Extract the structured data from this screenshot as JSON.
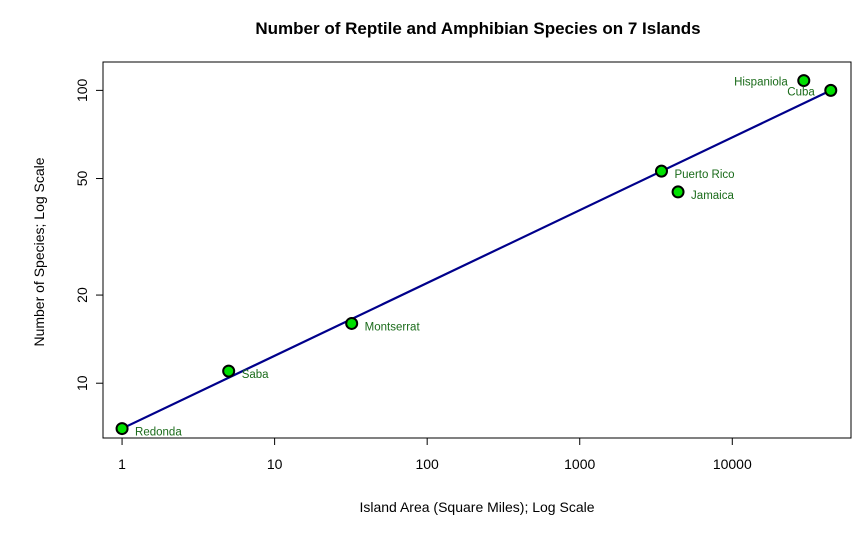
{
  "chart_data": {
    "type": "scatter",
    "title": "Number of Reptile and Amphibian Species on 7 Islands",
    "xlabel": "Island Area (Square Miles); Log Scale",
    "ylabel": "Number of Species; Log Scale",
    "x_scale": "log",
    "y_scale": "log",
    "xlim": [
      0.75,
      60000
    ],
    "ylim": [
      6.5,
      125
    ],
    "x_ticks": [
      1,
      10,
      100,
      1000,
      10000
    ],
    "x_tick_labels": [
      "1",
      "10",
      "100",
      "1000",
      "10000"
    ],
    "y_ticks": [
      10,
      20,
      50,
      100
    ],
    "y_tick_labels": [
      "10",
      "20",
      "50",
      "100"
    ],
    "grid": false,
    "points": [
      {
        "label": "Redonda",
        "x": 1,
        "y": 7,
        "label_side": "right-below"
      },
      {
        "label": "Saba",
        "x": 5,
        "y": 11,
        "label_side": "right-below"
      },
      {
        "label": "Montserrat",
        "x": 32,
        "y": 16,
        "label_side": "right-below"
      },
      {
        "label": "Puerto Rico",
        "x": 3435,
        "y": 53,
        "label_side": "right-below"
      },
      {
        "label": "Jamaica",
        "x": 4411,
        "y": 45,
        "label_side": "right-below"
      },
      {
        "label": "Hispaniola",
        "x": 29418,
        "y": 108,
        "label_side": "left"
      },
      {
        "label": "Cuba",
        "x": 44218,
        "y": 100,
        "label_side": "left"
      }
    ],
    "fit_line": {
      "from": {
        "x": 1,
        "y": 7
      },
      "to": {
        "x": 44218,
        "y": 100
      }
    },
    "colors": {
      "point_fill": "#00e000",
      "point_stroke": "#000000",
      "point_label": "#1a6b1a",
      "fit_line": "#00008b",
      "axis": "#000000",
      "title": "#000000"
    }
  }
}
